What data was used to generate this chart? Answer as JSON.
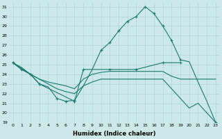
{
  "xlabel": "Humidex (Indice chaleur)",
  "bg_color": "#cce8e8",
  "line_color": "#1a7a6e",
  "xlim": [
    -0.5,
    23.5
  ],
  "ylim": [
    19,
    31.5
  ],
  "yticks": [
    19,
    20,
    21,
    22,
    23,
    24,
    25,
    26,
    27,
    28,
    29,
    30,
    31
  ],
  "xticks": [
    0,
    1,
    2,
    3,
    4,
    5,
    6,
    7,
    8,
    9,
    10,
    11,
    12,
    13,
    14,
    15,
    16,
    17,
    18,
    19,
    20,
    21,
    22,
    23
  ],
  "line1_x": [
    0,
    1,
    2,
    3,
    4,
    5,
    6,
    7,
    8,
    9,
    10,
    11,
    12,
    13,
    14,
    15,
    16,
    17,
    18,
    19,
    20,
    21,
    22,
    23
  ],
  "line1_y": [
    25.2,
    24.5,
    24.0,
    23.0,
    22.7,
    21.5,
    21.2,
    21.3,
    22.8,
    24.5,
    26.5,
    27.3,
    28.5,
    29.5,
    30.0,
    31.0,
    30.3,
    29.0,
    27.5,
    25.5,
    25.3,
    23.2,
    21.2,
    19.0
  ],
  "line1_markers_x": [
    0,
    1,
    2,
    3,
    5,
    6,
    7,
    10,
    11,
    12,
    13,
    14,
    15,
    16,
    17,
    18,
    19,
    23
  ],
  "line1_markers_y": [
    25.2,
    24.5,
    24.0,
    23.0,
    21.5,
    21.2,
    21.3,
    26.5,
    27.3,
    28.5,
    29.5,
    30.0,
    31.0,
    30.3,
    29.0,
    27.5,
    25.5,
    19.0
  ],
  "line2_x": [
    0,
    2,
    3,
    7,
    8,
    11,
    14,
    17,
    18,
    19
  ],
  "line2_y": [
    25.2,
    24.0,
    23.0,
    21.2,
    24.5,
    24.5,
    24.5,
    25.2,
    25.2,
    25.2
  ],
  "line2_markers_x": [
    0,
    2,
    3,
    7,
    8,
    11,
    14,
    17,
    19
  ],
  "line2_markers_y": [
    25.2,
    24.0,
    23.0,
    21.2,
    24.5,
    24.5,
    24.5,
    25.2,
    25.2
  ],
  "line3_x": [
    0,
    1,
    2,
    3,
    4,
    5,
    6,
    7,
    8,
    9,
    10,
    11,
    12,
    13,
    14,
    15,
    16,
    17,
    18,
    19,
    20,
    21,
    22,
    23
  ],
  "line3_y": [
    25.2,
    24.5,
    24.0,
    23.5,
    23.2,
    23.0,
    22.8,
    22.5,
    23.5,
    24.0,
    24.2,
    24.3,
    24.3,
    24.3,
    24.3,
    24.3,
    24.3,
    24.3,
    23.8,
    23.5,
    23.5,
    23.5,
    23.5,
    23.5
  ],
  "line4_x": [
    0,
    1,
    2,
    3,
    4,
    5,
    6,
    7,
    8,
    9,
    10,
    11,
    12,
    13,
    14,
    15,
    16,
    17,
    18,
    19,
    20,
    21,
    22,
    23
  ],
  "line4_y": [
    25.2,
    24.7,
    24.0,
    23.5,
    23.0,
    22.5,
    22.2,
    22.0,
    22.8,
    23.2,
    23.5,
    23.5,
    23.5,
    23.5,
    23.5,
    23.5,
    23.5,
    23.5,
    22.5,
    21.5,
    20.5,
    21.0,
    20.0,
    19.0
  ]
}
